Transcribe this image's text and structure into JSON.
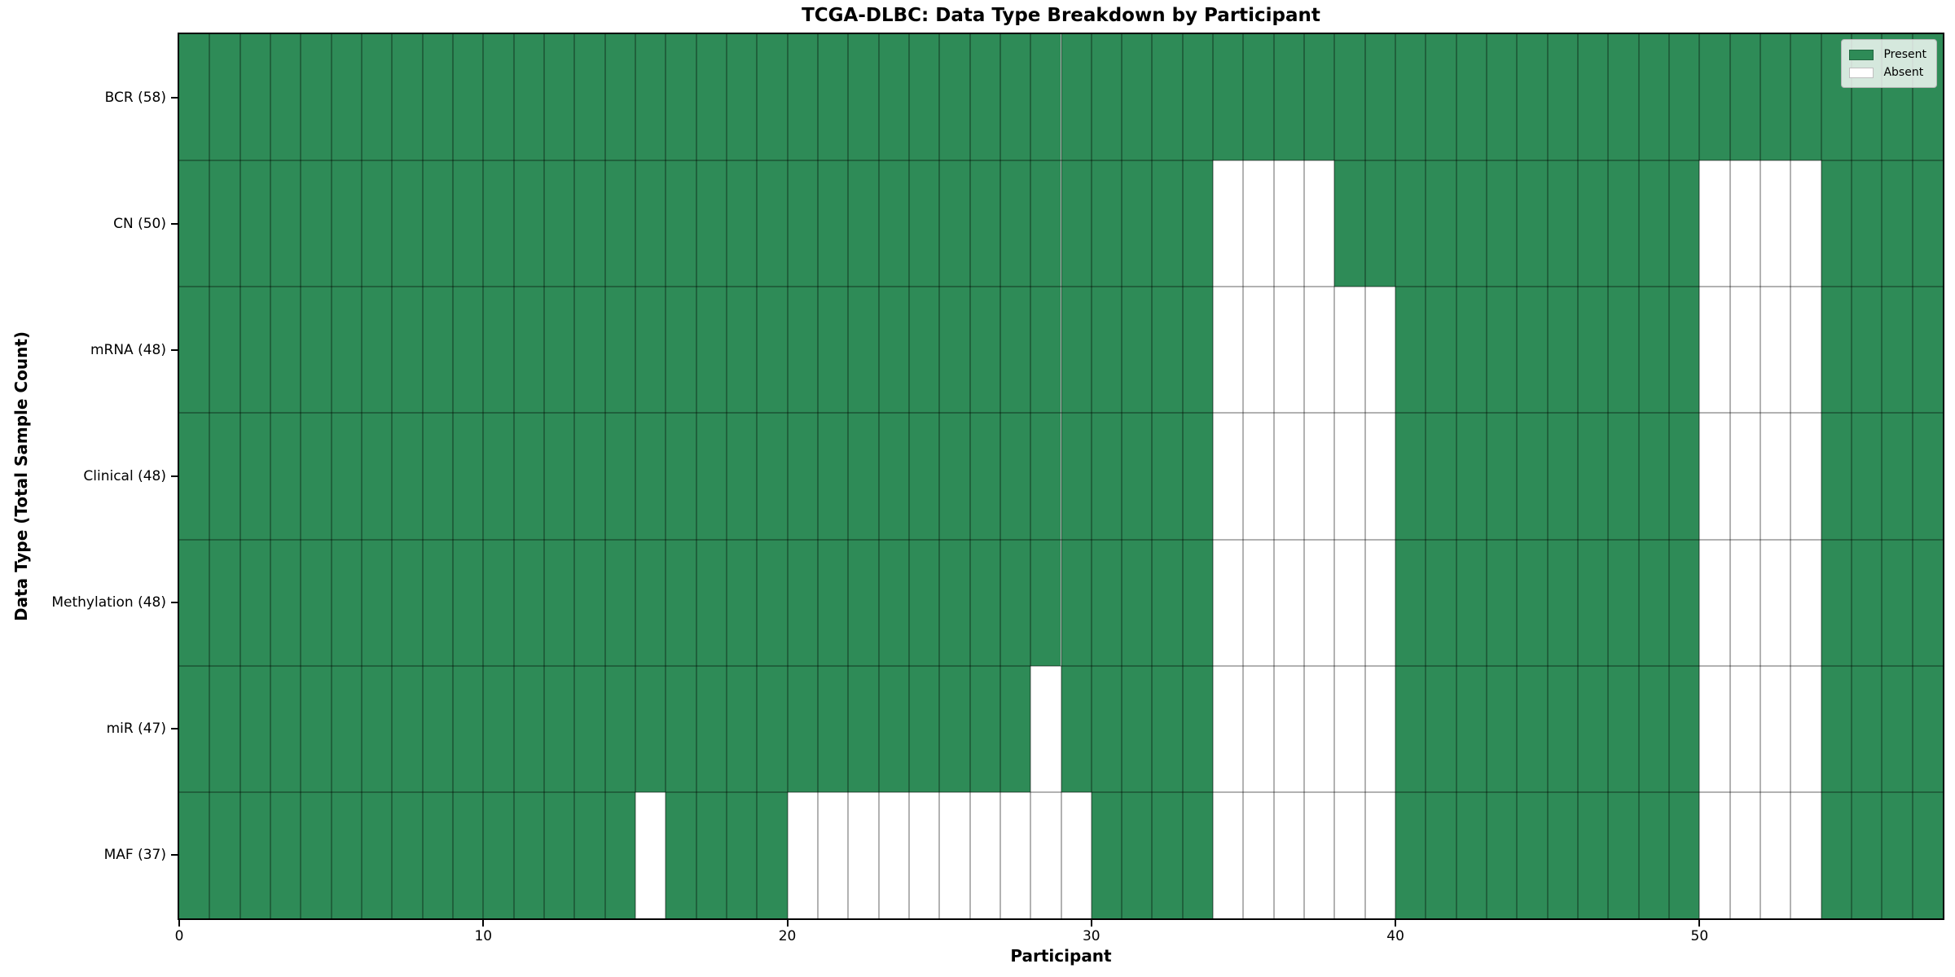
{
  "chart_data": {
    "type": "heatmap",
    "title": "TCGA-DLBC: Data Type Breakdown by Participant",
    "xlabel": "Participant",
    "ylabel": "Data Type (Total Sample Count)",
    "x_range": [
      0,
      58
    ],
    "n_participants": 58,
    "x_ticks": [
      0,
      10,
      20,
      30,
      40,
      50
    ],
    "grid": true,
    "legend_position": "upper right",
    "legend": [
      {
        "label": "Present",
        "color": "#2e8b57"
      },
      {
        "label": "Absent",
        "color": "#ffffff"
      }
    ],
    "colors": {
      "present": "#2e8b57",
      "absent": "#ffffff",
      "gridline": "rgba(0,0,0,0.30)",
      "axis": "#000000"
    },
    "rows": [
      {
        "key": "BCR",
        "label": "BCR (58)",
        "total": 58,
        "absent_participants": []
      },
      {
        "key": "CN",
        "label": "CN (50)",
        "total": 50,
        "absent_participants": [
          34,
          35,
          36,
          37,
          50,
          51,
          52,
          53
        ]
      },
      {
        "key": "mRNA",
        "label": "mRNA (48)",
        "total": 48,
        "absent_participants": [
          34,
          35,
          36,
          37,
          38,
          39,
          50,
          51,
          52,
          53
        ]
      },
      {
        "key": "Clinical",
        "label": "Clinical (48)",
        "total": 48,
        "absent_participants": [
          34,
          35,
          36,
          37,
          38,
          39,
          50,
          51,
          52,
          53
        ]
      },
      {
        "key": "Methylation",
        "label": "Methylation (48)",
        "total": 48,
        "absent_participants": [
          34,
          35,
          36,
          37,
          38,
          39,
          50,
          51,
          52,
          53
        ]
      },
      {
        "key": "miR",
        "label": "miR (47)",
        "total": 47,
        "absent_participants": [
          28,
          34,
          35,
          36,
          37,
          38,
          39,
          50,
          51,
          52,
          53
        ]
      },
      {
        "key": "MAF",
        "label": "MAF (37)",
        "total": 37,
        "absent_participants": [
          15,
          20,
          21,
          22,
          23,
          24,
          25,
          26,
          27,
          28,
          29,
          34,
          35,
          36,
          37,
          38,
          39,
          50,
          51,
          52,
          53
        ]
      }
    ]
  }
}
